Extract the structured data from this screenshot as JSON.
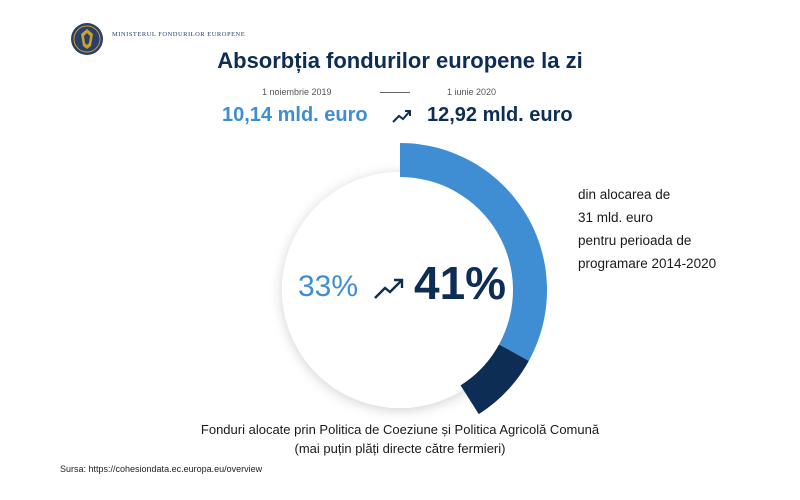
{
  "header": {
    "ministry": "Ministerul Fondurilor Europene",
    "title": "Absorbția fondurilor europene la zi"
  },
  "comparison": {
    "date_before": "1 noiembrie 2019",
    "date_after": "1 iunie 2020",
    "amount_before": "10,14 mld. euro",
    "amount_after": "12,92 mld. euro"
  },
  "description": {
    "lines": [
      "din alocarea de",
      "31 mld. euro",
      "pentru perioada de",
      "programare 2014-2020"
    ]
  },
  "caption": {
    "line1": "Fonduri alocate prin Politica de Coeziune și Politica Agricolă Comună",
    "line2": "(mai puțin plăți directe către fermieri)"
  },
  "source": "Sursa: https://cohesiondata.ec.europa.eu/overview",
  "colors": {
    "light_blue": "#3f8ed4",
    "dark_navy": "#0d2d54",
    "ring_track": "#ffffff"
  },
  "icons": {
    "trend": "trending-up-icon",
    "logo": "coat-of-arms-icon"
  },
  "chart_data": {
    "type": "pie",
    "subtype": "donut-progress",
    "series": [
      {
        "label": "33%",
        "value": 33,
        "color": "#3f8ed4"
      },
      {
        "label": "41%",
        "value": 41,
        "color": "#0d2d54"
      }
    ],
    "categories": [
      "1 noiembrie 2019",
      "1 iunie 2020"
    ],
    "values": [
      33,
      41
    ],
    "total": 100
  }
}
